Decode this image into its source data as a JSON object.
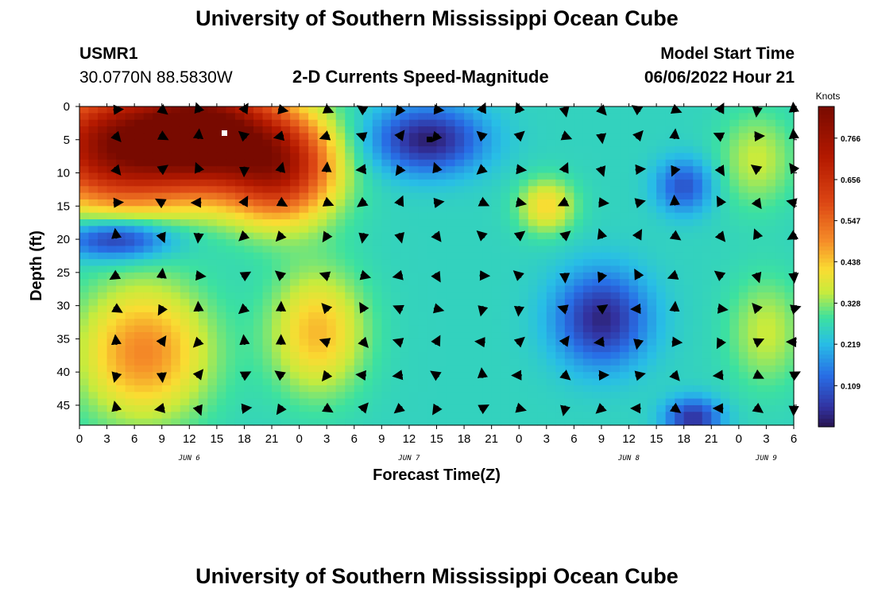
{
  "page": {
    "title_top": "University of Southern Mississippi Ocean Cube",
    "title_bottom": "University of Southern Mississippi Ocean Cube",
    "station_id": "USMR1",
    "station_coords": "30.0770N  88.5830W",
    "plot_title": "2-D Currents Speed-Magnitude",
    "model_start_label": "Model Start Time",
    "model_start_value": "06/06/2022 Hour 21"
  },
  "chart_data": {
    "type": "heatmap",
    "title": "2-D Currents Speed-Magnitude",
    "xlabel": "Forecast Time(Z)",
    "ylabel": "Depth (ft)",
    "colorbar_label": "Knots",
    "x_range_hours": [
      0,
      78
    ],
    "y_range_ft": [
      0,
      48
    ],
    "x_ticks": [
      "0",
      "3",
      "6",
      "9",
      "12",
      "15",
      "18",
      "21",
      "0",
      "3",
      "6",
      "9",
      "12",
      "15",
      "18",
      "21",
      "0",
      "3",
      "6",
      "9",
      "12",
      "15",
      "18",
      "21",
      "0",
      "3",
      "6"
    ],
    "y_ticks": [
      "0",
      "5",
      "10",
      "15",
      "20",
      "25",
      "30",
      "35",
      "40",
      "45"
    ],
    "date_labels": [
      {
        "label": "JUN 6",
        "hour": 12
      },
      {
        "label": "JUN 7",
        "hour": 36
      },
      {
        "label": "JUN 8",
        "hour": 60
      },
      {
        "label": "JUN 9",
        "hour": 75
      }
    ],
    "colorbar_ticks": [
      "0.766",
      "0.656",
      "0.547",
      "0.438",
      "0.328",
      "0.219",
      "0.109"
    ],
    "colorbar_values": [
      0.766,
      0.656,
      0.547,
      0.438,
      0.328,
      0.219,
      0.109
    ],
    "value_range_knots": [
      0.0,
      0.85
    ],
    "speed_features_knots": [
      {
        "hour": 4,
        "depth": 6,
        "speed": 0.8,
        "spread_h": 9,
        "spread_d": 9
      },
      {
        "hour": 14,
        "depth": 4,
        "speed": 0.8,
        "spread_h": 7,
        "spread_d": 8
      },
      {
        "hour": 22,
        "depth": 9,
        "speed": 0.7,
        "spread_h": 6,
        "spread_d": 8
      },
      {
        "hour": 4,
        "depth": 20,
        "speed": 0.03,
        "spread_h": 6,
        "spread_d": 3
      },
      {
        "hour": 7,
        "depth": 37,
        "speed": 0.5,
        "spread_h": 7,
        "spread_d": 10
      },
      {
        "hour": 26,
        "depth": 34,
        "speed": 0.45,
        "spread_h": 5,
        "spread_d": 9
      },
      {
        "hour": 38,
        "depth": 5,
        "speed": 0.02,
        "spread_h": 6,
        "spread_d": 5
      },
      {
        "hour": 51,
        "depth": 15,
        "speed": 0.42,
        "spread_h": 3,
        "spread_d": 4
      },
      {
        "hour": 57,
        "depth": 32,
        "speed": 0.03,
        "spread_h": 5,
        "spread_d": 7
      },
      {
        "hour": 66,
        "depth": 12,
        "speed": 0.1,
        "spread_h": 3,
        "spread_d": 4
      },
      {
        "hour": 74,
        "depth": 8,
        "speed": 0.36,
        "spread_h": 4,
        "spread_d": 7
      },
      {
        "hour": 75,
        "depth": 34,
        "speed": 0.36,
        "spread_h": 4,
        "spread_d": 8
      },
      {
        "hour": 67,
        "depth": 47,
        "speed": 0.05,
        "spread_h": 3,
        "spread_d": 3
      }
    ],
    "vector_rows_depth_ft": [
      0,
      4,
      9,
      14,
      19,
      25,
      30,
      35,
      40,
      45
    ],
    "vector_cols_hour": [
      4,
      9,
      13,
      18,
      22,
      27,
      31,
      35,
      39,
      44,
      48,
      53,
      57,
      61,
      65,
      70,
      74,
      78
    ]
  }
}
